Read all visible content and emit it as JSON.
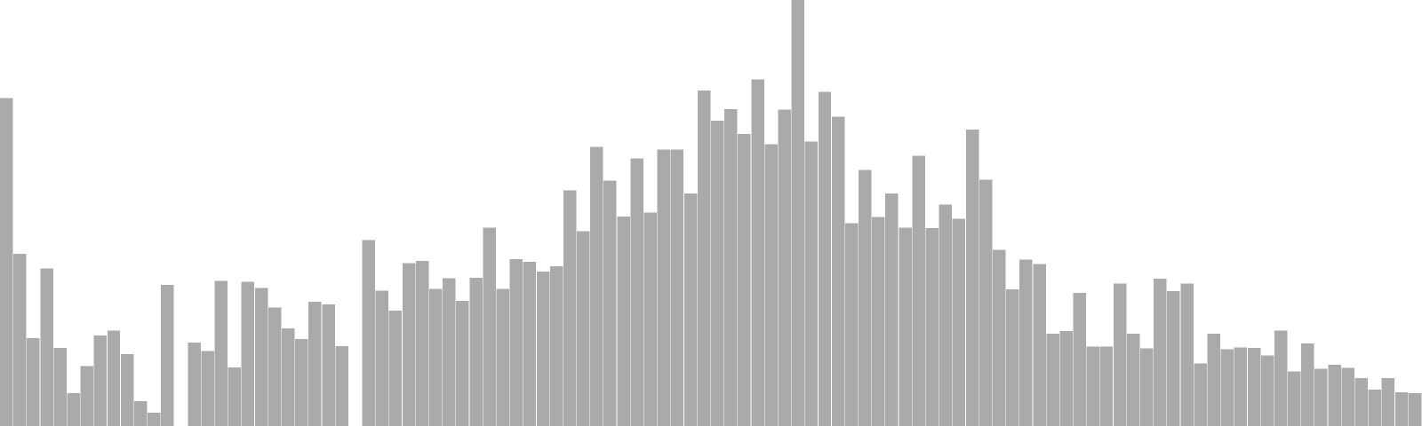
{
  "chart_data": {
    "type": "bar",
    "title": "",
    "xlabel": "",
    "ylabel": "",
    "grid": false,
    "legend": "none",
    "ylim": [
      0,
      100
    ],
    "bar_color": "#aaaaaa",
    "bar_edge_color": "#ffffff",
    "values": [
      77,
      40.4,
      20.6,
      37,
      18.3,
      7.7,
      14.1,
      21.3,
      22.4,
      16.9,
      5.8,
      3.1,
      33.1,
      0,
      19.6,
      17.6,
      34.1,
      13.7,
      33.9,
      32.4,
      27.8,
      22.9,
      20.4,
      29.2,
      28.5,
      18.7,
      0,
      43.6,
      31.8,
      27.1,
      38.2,
      38.8,
      32.2,
      34.7,
      29.4,
      34.8,
      46.6,
      32.2,
      39.2,
      38.5,
      36.3,
      37.5,
      55.3,
      45.7,
      65.5,
      57.6,
      49.2,
      62.8,
      50.1,
      64.9,
      64.9,
      54.6,
      78.7,
      71.7,
      74.4,
      68.5,
      81.4,
      66.1,
      74.3,
      100,
      66.8,
      78.4,
      72.6,
      47.6,
      60.1,
      49.1,
      54.6,
      46.6,
      63.4,
      46.5,
      52,
      48.6,
      69.6,
      57.8,
      41.4,
      32.1,
      39.1,
      38,
      21.7,
      22.3,
      31.2,
      18.6,
      18.6,
      33.4,
      21.7,
      18.2,
      34.6,
      31.7,
      33.4,
      14.7,
      21.7,
      18,
      18.4,
      18.3,
      16.6,
      22.4,
      12.8,
      19.4,
      13.4,
      14.4,
      13.6,
      11.2,
      8.5,
      11.2,
      7.9,
      7.7
    ]
  }
}
